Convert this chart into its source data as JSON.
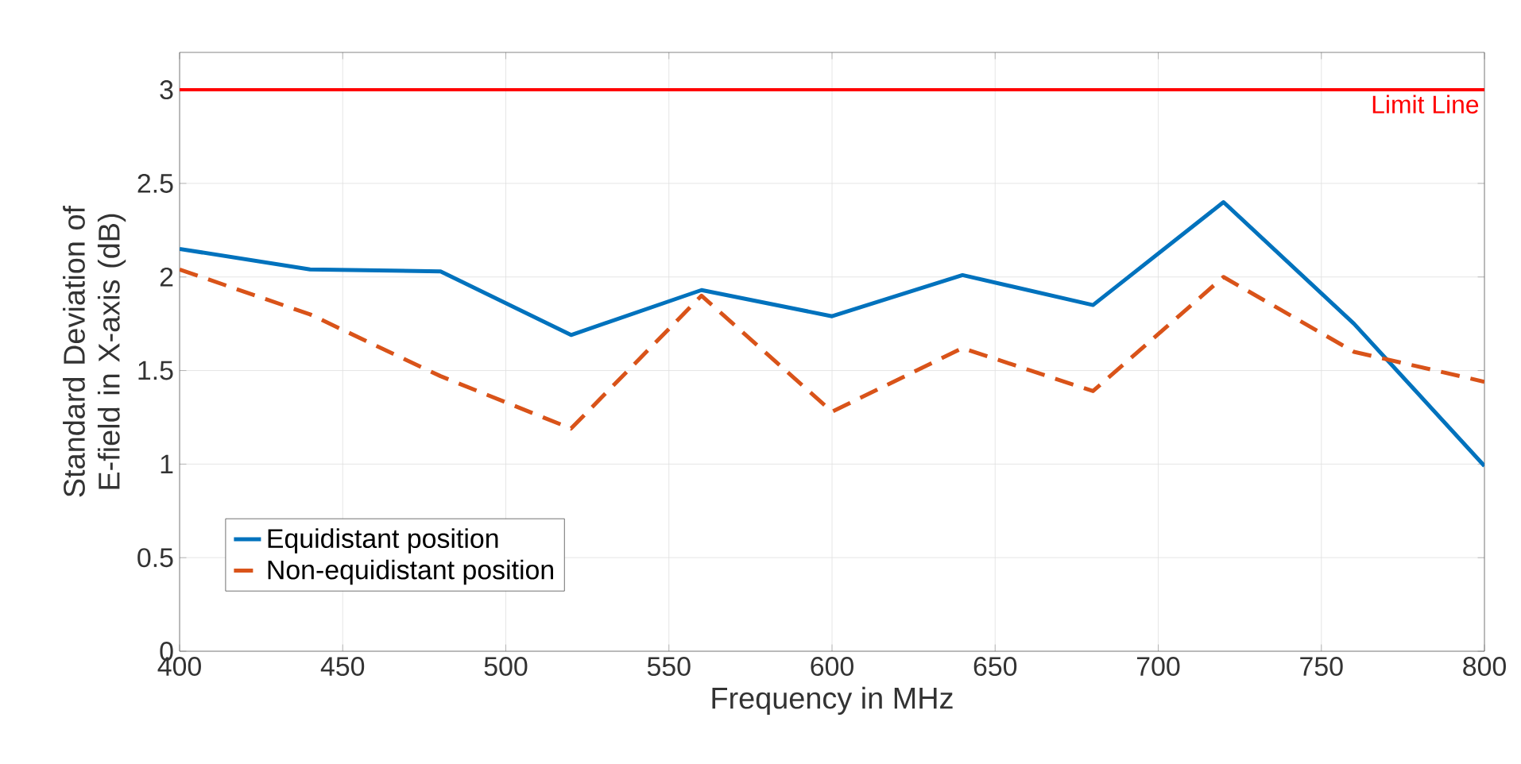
{
  "chart_data": {
    "type": "line",
    "xlabel": "Frequency in MHz",
    "ylabel": "Standard Deviation of E-field in X-axis (dB)",
    "x": [
      400,
      440,
      480,
      520,
      560,
      600,
      640,
      680,
      720,
      760,
      800
    ],
    "series": [
      {
        "name": "Equidistant position",
        "color": "#0072bd",
        "line_style": "solid",
        "values": [
          2.15,
          2.04,
          2.03,
          1.69,
          1.93,
          1.79,
          2.01,
          1.85,
          2.4,
          1.75,
          0.99
        ]
      },
      {
        "name": "Non-equidistant position",
        "color": "#d95319",
        "line_style": "dashed",
        "values": [
          2.04,
          1.8,
          1.47,
          1.19,
          1.9,
          1.28,
          1.62,
          1.39,
          2.0,
          1.6,
          1.44
        ]
      }
    ],
    "xlim": [
      400,
      800
    ],
    "xticks": [
      400,
      450,
      500,
      550,
      600,
      650,
      700,
      750,
      800
    ],
    "ylim": [
      0,
      3.2
    ],
    "yticks": [
      0,
      0.5,
      1,
      1.5,
      2,
      2.5,
      3
    ],
    "ref_lines": [
      {
        "axis": "y",
        "value": 3,
        "label": "Limit Line",
        "color": "#ff0000"
      }
    ],
    "grid": true,
    "legend": "bottom left",
    "marker": "none"
  }
}
